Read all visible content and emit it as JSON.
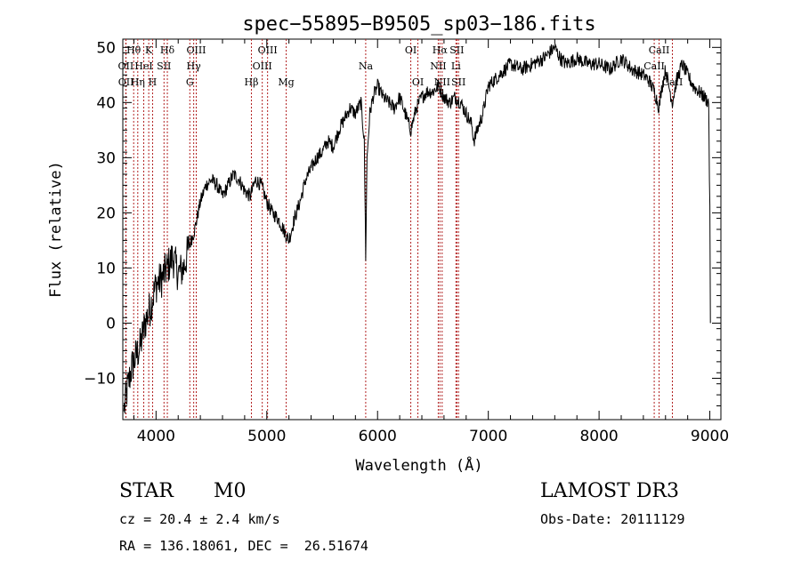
{
  "chart_data": {
    "type": "line",
    "title": "spec−55895−B9505_sp03−186.fits",
    "xlabel": "Wavelength (Å)",
    "ylabel": "Flux (relative)",
    "xlim": [
      3700,
      9100
    ],
    "ylim": [
      -17.5,
      51.5
    ],
    "xticks": [
      4000,
      5000,
      6000,
      7000,
      8000,
      9000
    ],
    "xtick_labels": [
      "4000",
      "5000",
      "6000",
      "7000",
      "8000",
      "9000"
    ],
    "yticks": [
      -10,
      0,
      10,
      20,
      30,
      40,
      50
    ],
    "ytick_labels": [
      "−10",
      "0",
      "10",
      "20",
      "30",
      "40",
      "50"
    ],
    "series": [
      {
        "name": "spectrum",
        "x": [
          3710,
          3740,
          3780,
          3820,
          3860,
          3900,
          3950,
          4000,
          4050,
          4100,
          4150,
          4200,
          4250,
          4300,
          4350,
          4400,
          4450,
          4500,
          4550,
          4600,
          4650,
          4700,
          4750,
          4800,
          4850,
          4900,
          4950,
          5000,
          5050,
          5100,
          5150,
          5200,
          5250,
          5300,
          5350,
          5400,
          5450,
          5500,
          5550,
          5600,
          5650,
          5700,
          5750,
          5800,
          5850,
          5880,
          5893,
          5905,
          5930,
          5960,
          6000,
          6050,
          6100,
          6150,
          6200,
          6250,
          6300,
          6350,
          6400,
          6450,
          6500,
          6550,
          6600,
          6650,
          6700,
          6750,
          6800,
          6850,
          6870,
          6900,
          6950,
          7000,
          7050,
          7100,
          7150,
          7200,
          7300,
          7400,
          7500,
          7550,
          7600,
          7650,
          7700,
          7800,
          7900,
          8000,
          8100,
          8200,
          8300,
          8400,
          8450,
          8500,
          8542,
          8560,
          8600,
          8620,
          8662,
          8700,
          8750,
          8800,
          8850,
          8900,
          8950,
          8990,
          9000,
          9005
        ],
        "values": [
          -16,
          -12,
          -8,
          -6,
          -4,
          0,
          3,
          7,
          8,
          10,
          12,
          9,
          10,
          14,
          17,
          22,
          25,
          26,
          25,
          23,
          25,
          27,
          26,
          24,
          23,
          26,
          25,
          22,
          20,
          19,
          17,
          15,
          19,
          22,
          26,
          28,
          30,
          31,
          33,
          32,
          35,
          37,
          39,
          38,
          40,
          33,
          12,
          30,
          38,
          41,
          43,
          41,
          40,
          39,
          41,
          38,
          35,
          39,
          41,
          42,
          42,
          43,
          41,
          40,
          41,
          40,
          38,
          36,
          33,
          35,
          38,
          43,
          44,
          45,
          46,
          47,
          46,
          47,
          48,
          49,
          50,
          48,
          47,
          48,
          47,
          47,
          46,
          48,
          46,
          45,
          44,
          42,
          39,
          42,
          46,
          44,
          40,
          44,
          47,
          45,
          43,
          42,
          41,
          40,
          20,
          0
        ]
      }
    ],
    "emission_lines": [
      {
        "label": "Hθ",
        "wavelength": 3798,
        "row": 1
      },
      {
        "label": "OII",
        "wavelength": 3727,
        "row": 2
      },
      {
        "label": "OII",
        "wavelength": 3729,
        "row": 3
      },
      {
        "label": "K",
        "wavelength": 3934,
        "row": 1
      },
      {
        "label": "HeI",
        "wavelength": 3889,
        "row": 2
      },
      {
        "label": "Hη",
        "wavelength": 3835,
        "row": 3
      },
      {
        "label": "H",
        "wavelength": 3969,
        "row": 3
      },
      {
        "label": "SII",
        "wavelength": 4072,
        "row": 2
      },
      {
        "label": "Hδ",
        "wavelength": 4102,
        "row": 1
      },
      {
        "label": "OIII",
        "wavelength": 4363,
        "row": 1
      },
      {
        "label": "Hγ",
        "wavelength": 4340,
        "row": 2
      },
      {
        "label": "G",
        "wavelength": 4305,
        "row": 3
      },
      {
        "label": "Hβ",
        "wavelength": 4861,
        "row": 3
      },
      {
        "label": "OIII",
        "wavelength": 5007,
        "row": 1
      },
      {
        "label": "OIII",
        "wavelength": 4959,
        "row": 2
      },
      {
        "label": "Mg",
        "wavelength": 5175,
        "row": 3
      },
      {
        "label": "Na",
        "wavelength": 5893,
        "row": 2
      },
      {
        "label": "OI",
        "wavelength": 6300,
        "row": 1
      },
      {
        "label": "OI",
        "wavelength": 6364,
        "row": 3
      },
      {
        "label": "Hα",
        "wavelength": 6563,
        "row": 1
      },
      {
        "label": "SII",
        "wavelength": 6716,
        "row": 1
      },
      {
        "label": "NII",
        "wavelength": 6548,
        "row": 2
      },
      {
        "label": "Li",
        "wavelength": 6708,
        "row": 2
      },
      {
        "label": "NII",
        "wavelength": 6583,
        "row": 3
      },
      {
        "label": "SII",
        "wavelength": 6731,
        "row": 3
      },
      {
        "label": "CaII",
        "wavelength": 8542,
        "row": 1
      },
      {
        "label": "CaII",
        "wavelength": 8498,
        "row": 2
      },
      {
        "label": "CaII",
        "wavelength": 8662,
        "row": 3
      }
    ]
  },
  "info": {
    "object_class": "STAR",
    "subclass": "M0",
    "survey": "LAMOST DR3",
    "redshift": "cz = 20.4 ± 2.4 km/s",
    "obs_date": "Obs-Date: 20111129",
    "coords": "RA = 136.18061, DEC =  26.51674"
  }
}
